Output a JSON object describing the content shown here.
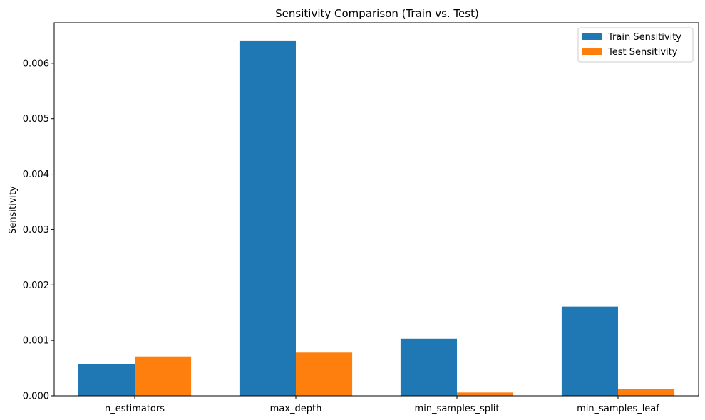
{
  "chart_data": {
    "type": "bar",
    "title": "Sensitivity Comparison (Train vs. Test)",
    "xlabel": "",
    "ylabel": "Sensitivity",
    "categories": [
      "n_estimators",
      "max_depth",
      "min_samples_split",
      "min_samples_leaf"
    ],
    "series": [
      {
        "name": "Train Sensitivity",
        "color": "#1f77b4",
        "values": [
          0.00057,
          0.00641,
          0.00103,
          0.00161
        ]
      },
      {
        "name": "Test Sensitivity",
        "color": "#ff7f0e",
        "values": [
          0.00071,
          0.00078,
          6e-05,
          0.00012
        ]
      }
    ],
    "ylim": [
      0,
      0.00673
    ],
    "yticks": [
      "0.000",
      "0.001",
      "0.002",
      "0.003",
      "0.004",
      "0.005",
      "0.006"
    ],
    "grid": false,
    "legend_position": "top-right"
  }
}
